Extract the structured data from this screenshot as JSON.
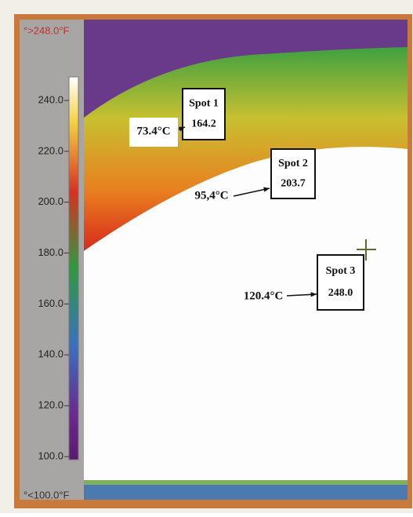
{
  "scale": {
    "max_label": "°>248.0°F",
    "min_label": "°<100.0°F",
    "ticks": [
      "240.0",
      "220.0",
      "200.0",
      "180.0",
      "160.0",
      "140.0",
      "120.0",
      "100.0"
    ]
  },
  "spots": [
    {
      "name": "Spot 1",
      "value": "164.2",
      "annotation": "73.4°C"
    },
    {
      "name": "Spot 2",
      "value": "203.7",
      "annotation": "95,4°C"
    },
    {
      "name": "Spot 3",
      "value": "248.0",
      "annotation": "120.4°C"
    }
  ]
}
